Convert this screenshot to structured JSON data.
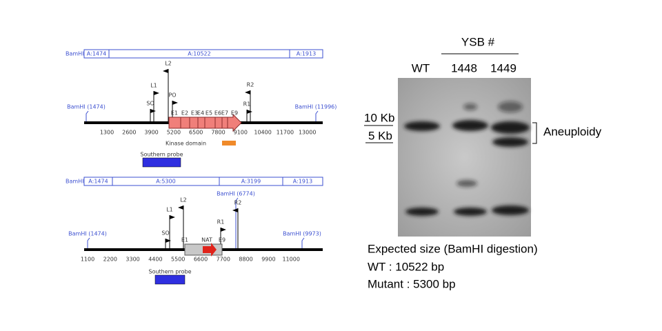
{
  "map1": {
    "fragments": [
      "BamHI",
      "A:1474",
      "A:10522",
      "A:1913"
    ],
    "sites": [
      "BamHI (1474)",
      "BamHI (11996)"
    ],
    "ticks": [
      1300,
      2600,
      3900,
      5200,
      6500,
      7800,
      9100,
      10400,
      11700,
      13000
    ],
    "primers": [
      "L2",
      "L1",
      "PO",
      "SO",
      "R2",
      "R1"
    ],
    "exons": [
      "E1",
      "E2",
      "E3",
      "E4",
      "E5",
      "E6",
      "E7",
      "E9"
    ],
    "kinase_domain": "Kinase domain",
    "probe": "Southern probe"
  },
  "map2": {
    "fragments": [
      "BamHI",
      "A:1474",
      "A:5300",
      "A:3199",
      "A:1913"
    ],
    "sites": [
      "BamHI (1474)",
      "BamHI (6774)",
      "BamHI (9973)"
    ],
    "ticks": [
      1100,
      2200,
      3300,
      4400,
      5500,
      6600,
      7700,
      8800,
      9900,
      11000
    ],
    "primers": [
      "L2",
      "L1",
      "SO",
      "R2",
      "R1"
    ],
    "exons": [
      "E1",
      "NAT",
      "E9"
    ],
    "probe": "Southern probe"
  },
  "gel": {
    "group": "YSB #",
    "lanes": [
      "WT",
      "1448",
      "1449"
    ],
    "markers": [
      "10 Kb",
      "5 Kb"
    ],
    "annotation": "Aneuploidy"
  },
  "caption": [
    "Expected size (BamHI digestion)",
    "WT : 10522 bp",
    "Mutant : 5300 bp"
  ]
}
